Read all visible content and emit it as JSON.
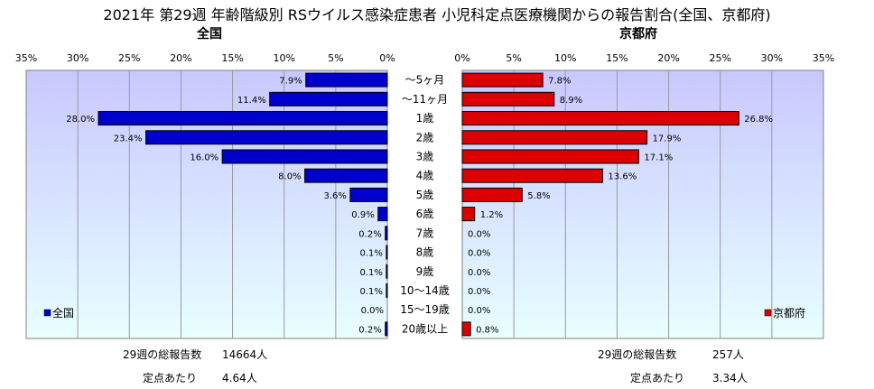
{
  "title": "2021年 第29週 年齢階級別 RSウイルス感染症患者 小児科定点医療機関からの報告割合(全国、京都府)",
  "left_title": "全国",
  "right_title": "京都府",
  "colors": {
    "nation": "#0000CC",
    "kyoto": "#DD0000",
    "plot_bg_top": "#C8C8FF",
    "plot_bg_bottom": "#E8FFFF"
  },
  "chart_data": {
    "type": "bar",
    "orientation": "horizontal-butterfly",
    "categories": [
      "～5ヶ月",
      "～11ヶ月",
      "1歳",
      "2歳",
      "3歳",
      "4歳",
      "5歳",
      "6歳",
      "7歳",
      "8歳",
      "9歳",
      "10～14歳",
      "15～19歳",
      "20歳以上"
    ],
    "xlim": [
      0,
      35
    ],
    "ticks": [
      0,
      5,
      10,
      15,
      20,
      25,
      30,
      35
    ],
    "unit": "%",
    "series": [
      {
        "name": "全国",
        "values": [
          7.9,
          11.4,
          28.0,
          23.4,
          16.0,
          8.0,
          3.6,
          0.9,
          0.2,
          0.1,
          0.1,
          0.1,
          0.0,
          0.2
        ]
      },
      {
        "name": "京都府",
        "values": [
          7.8,
          8.9,
          26.8,
          17.9,
          17.1,
          13.6,
          5.8,
          1.2,
          0.0,
          0.0,
          0.0,
          0.0,
          0.0,
          0.8
        ]
      }
    ],
    "legend": [
      "全国",
      "京都府"
    ],
    "legend_placement": "bottom-left / bottom-right inside plots"
  },
  "footer": {
    "nation_total_label": "29週の総報告数",
    "nation_total_value": "14664人",
    "nation_per_label": "定点あたり",
    "nation_per_value": "4.64人",
    "kyoto_total_label": "29週の総報告数",
    "kyoto_total_value": "257人",
    "kyoto_per_label": "定点あたり",
    "kyoto_per_value": "3.34人"
  }
}
